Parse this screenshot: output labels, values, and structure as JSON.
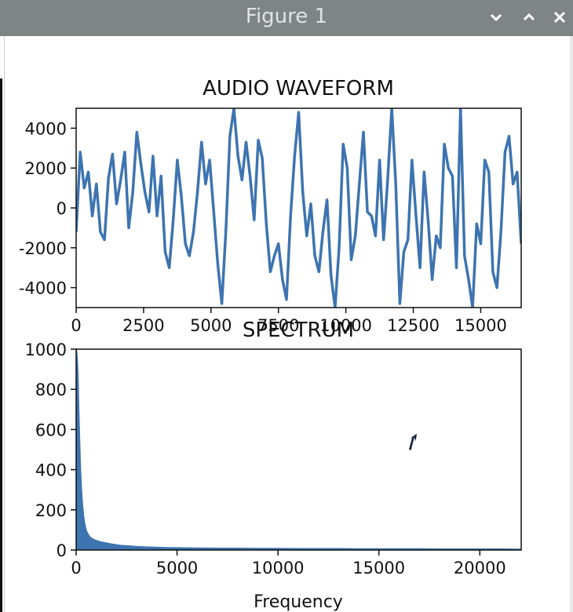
{
  "window": {
    "title": "Figure 1"
  },
  "chart_data": [
    {
      "type": "line",
      "title": "AUDIO WAVEFORM",
      "xlabel": "",
      "ylabel": "",
      "xlim": [
        0,
        16500
      ],
      "ylim": [
        -5000,
        5000
      ],
      "xticks": [
        0,
        2500,
        5000,
        7500,
        10000,
        12500,
        15000
      ],
      "xtick_labels": [
        "0",
        "2500",
        "5000",
        "7500",
        "10000",
        "12500",
        "15000"
      ],
      "yticks": [
        -4000,
        -2000,
        0,
        2000,
        4000
      ],
      "ytick_labels": [
        "-4000",
        "-2000",
        "0",
        "2000",
        "4000"
      ],
      "color": "#3d74b0",
      "grid": false,
      "series": [
        {
          "x": [
            0,
            150,
            300,
            450,
            600,
            750,
            900,
            1050,
            1200,
            1350,
            1500,
            1650,
            1800,
            1950,
            2100,
            2250,
            2400,
            2550,
            2700,
            2850,
            3000,
            3150,
            3300,
            3450,
            3600,
            3750,
            3900,
            4050,
            4200,
            4350,
            4500,
            4650,
            4800,
            4950,
            5100,
            5250,
            5400,
            5550,
            5700,
            5850,
            6000,
            6150,
            6300,
            6450,
            6600,
            6750,
            6900,
            7050,
            7200,
            7350,
            7500,
            7650,
            7800,
            7950,
            8100,
            8250,
            8400,
            8550,
            8700,
            8850,
            9000,
            9150,
            9300,
            9450,
            9600,
            9750,
            9900,
            10050,
            10200,
            10350,
            10500,
            10650,
            10800,
            10950,
            11100,
            11250,
            11400,
            11550,
            11700,
            11850,
            12000,
            12150,
            12300,
            12450,
            12600,
            12750,
            12900,
            13050,
            13200,
            13350,
            13500,
            13650,
            13800,
            13950,
            14100,
            14250,
            14400,
            14550,
            14700,
            14850,
            15000,
            15150,
            15300,
            15450,
            15600,
            15750,
            15900,
            16050,
            16200,
            16350,
            16500
          ],
          "y": [
            -1200,
            2800,
            1000,
            1800,
            -400,
            1200,
            -1200,
            -1600,
            1500,
            2700,
            200,
            1400,
            2800,
            -1000,
            800,
            3800,
            2200,
            800,
            -200,
            2600,
            -400,
            1600,
            -2200,
            -3000,
            -600,
            2400,
            600,
            -1800,
            -2400,
            -1200,
            800,
            3300,
            1200,
            2400,
            -200,
            -2800,
            -4800,
            -1200,
            3600,
            5000,
            2600,
            1400,
            3300,
            1600,
            -600,
            3400,
            2500,
            -800,
            -3200,
            -2400,
            -1800,
            -3600,
            -4600,
            -400,
            2600,
            4800,
            800,
            -1400,
            200,
            -2400,
            -3200,
            -1200,
            400,
            -3400,
            -5000,
            -2000,
            3200,
            2000,
            -2600,
            -1400,
            1200,
            3800,
            -200,
            -400,
            -1400,
            2400,
            -1600,
            1400,
            5000,
            1200,
            -4800,
            -2200,
            -1600,
            2400,
            -400,
            -3000,
            1800,
            -600,
            -3600,
            -1400,
            -2000,
            3200,
            2000,
            1600,
            -3000,
            5000,
            -2400,
            -3600,
            -5000,
            -800,
            -1800,
            2400,
            1800,
            -3200,
            -4000,
            -1200,
            2800,
            3600,
            1200,
            1800,
            -1800
          ]
        }
      ]
    },
    {
      "type": "area",
      "title": "SPECTRUM",
      "xlabel": "Frequency",
      "ylabel": "",
      "xlim": [
        0,
        22050
      ],
      "ylim": [
        0,
        1000
      ],
      "xticks": [
        0,
        5000,
        10000,
        15000,
        20000
      ],
      "xtick_labels": [
        "0",
        "5000",
        "10000",
        "15000",
        "20000"
      ],
      "yticks": [
        0,
        200,
        400,
        600,
        800,
        1000
      ],
      "ytick_labels": [
        "0",
        "200",
        "400",
        "600",
        "800",
        "1000"
      ],
      "color": "#3d74b0",
      "grid": false,
      "series": [
        {
          "x": [
            0,
            40,
            80,
            120,
            160,
            200,
            240,
            280,
            320,
            360,
            400,
            450,
            500,
            600,
            700,
            800,
            900,
            1000,
            1200,
            1400,
            1600,
            1800,
            2000,
            2200,
            2500,
            2800,
            3000,
            3500,
            4000,
            4500,
            5000,
            6000,
            7000,
            8000,
            9000,
            10000,
            11000,
            12000,
            13000,
            14000,
            15000,
            16000,
            17000,
            18000,
            19000,
            20000,
            21000,
            22050
          ],
          "y": [
            1000,
            960,
            880,
            700,
            560,
            430,
            330,
            260,
            210,
            170,
            140,
            115,
            95,
            75,
            62,
            55,
            50,
            46,
            40,
            36,
            32,
            28,
            25,
            22,
            20,
            18,
            16,
            14,
            12,
            11,
            10,
            9,
            8,
            8,
            7,
            7,
            6,
            6,
            6,
            5,
            5,
            5,
            5,
            4,
            4,
            4,
            4,
            3
          ]
        }
      ]
    }
  ]
}
